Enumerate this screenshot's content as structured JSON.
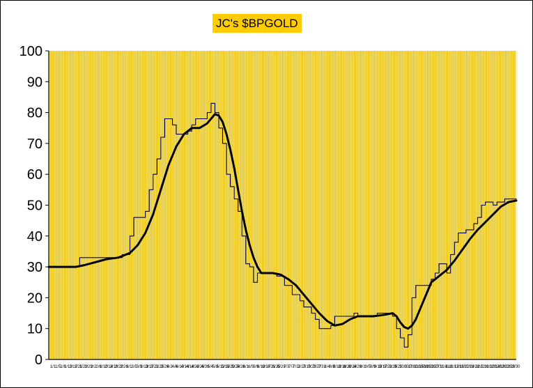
{
  "chart_data": {
    "type": "line",
    "title": "JC's $BPGOLD",
    "xlabel": "",
    "ylabel": "",
    "ylim": [
      0,
      100
    ],
    "yticks": [
      0,
      10,
      20,
      30,
      40,
      50,
      60,
      70,
      80,
      90,
      100
    ],
    "grid": "vertical",
    "legend": "none",
    "colors": {
      "plot_background": "#f7e26b",
      "gridline": "#e0b800",
      "title_background": "#ffcc00",
      "line": "#000040",
      "moving_average": "#000000"
    },
    "x_tick_labels": [
      "1/1",
      "1/5",
      "1/9",
      "1/13",
      "1/17",
      "1/21",
      "1/23",
      "1/29",
      "2/2",
      "2/6",
      "2/10",
      "2/14",
      "2/18",
      "2/22",
      "2/26",
      "3/1",
      "3/5",
      "3/9",
      "3/13",
      "3/17",
      "3/21",
      "3/25",
      "3/29",
      "4/2",
      "4/6",
      "4/10",
      "4/14",
      "4/18",
      "4/22",
      "4/26",
      "4/30",
      "5/4",
      "5/8",
      "5/12",
      "5/16",
      "5/20",
      "5/24",
      "5/28",
      "6/1",
      "6/5",
      "6/9",
      "6/13",
      "6/17",
      "6/21",
      "6/25",
      "6/29",
      "7/3",
      "7/7",
      "7/11",
      "7/15",
      "7/19",
      "7/23",
      "7/27",
      "7/31",
      "8/4",
      "8/8",
      "8/12",
      "8/16",
      "8/20",
      "8/24",
      "8/28",
      "9/1",
      "9/5",
      "9/9",
      "9/13",
      "9/17",
      "9/21",
      "9/25",
      "9/29",
      "10/3",
      "10/7",
      "10/11",
      "10/15",
      "10/19",
      "10/23",
      "10/27",
      "10/31",
      "11/4",
      "11/8",
      "11/12",
      "11/16",
      "11/20",
      "11/24",
      "11/28",
      "12/2",
      "12/6",
      "12/10",
      "12/14",
      "12/18",
      "12/22",
      "12/26",
      "12/30"
    ],
    "series": [
      {
        "style": "thin",
        "values": [
          [
            0,
            30
          ],
          [
            8,
            30
          ],
          [
            8,
            33
          ],
          [
            19,
            33
          ],
          [
            19,
            34
          ],
          [
            21,
            34
          ],
          [
            21,
            40
          ],
          [
            22,
            40
          ],
          [
            22,
            46
          ],
          [
            25,
            46
          ],
          [
            25,
            48
          ],
          [
            26,
            48
          ],
          [
            26,
            55
          ],
          [
            27,
            55
          ],
          [
            27,
            60
          ],
          [
            28,
            60
          ],
          [
            28,
            65
          ],
          [
            29,
            65
          ],
          [
            29,
            72
          ],
          [
            30,
            72
          ],
          [
            30,
            78
          ],
          [
            32,
            78
          ],
          [
            32,
            76
          ],
          [
            33,
            76
          ],
          [
            33,
            73
          ],
          [
            36,
            73
          ],
          [
            36,
            74
          ],
          [
            37,
            74
          ],
          [
            37,
            76
          ],
          [
            38,
            76
          ],
          [
            38,
            78
          ],
          [
            41,
            78
          ],
          [
            41,
            80
          ],
          [
            42,
            80
          ],
          [
            42,
            83
          ],
          [
            43,
            83
          ],
          [
            43,
            80
          ],
          [
            44,
            80
          ],
          [
            44,
            75
          ],
          [
            45,
            75
          ],
          [
            45,
            70
          ],
          [
            46,
            70
          ],
          [
            46,
            60
          ],
          [
            47,
            60
          ],
          [
            47,
            56
          ],
          [
            48,
            56
          ],
          [
            48,
            52
          ],
          [
            49,
            52
          ],
          [
            49,
            48
          ],
          [
            50,
            48
          ],
          [
            50,
            40
          ],
          [
            51,
            40
          ],
          [
            51,
            31
          ],
          [
            52,
            31
          ],
          [
            52,
            30
          ],
          [
            53,
            30
          ],
          [
            53,
            25
          ],
          [
            54,
            25
          ],
          [
            54,
            28
          ],
          [
            59,
            28
          ],
          [
            59,
            27
          ],
          [
            61,
            27
          ],
          [
            61,
            24
          ],
          [
            63,
            24
          ],
          [
            63,
            21
          ],
          [
            65,
            21
          ],
          [
            65,
            19
          ],
          [
            66,
            19
          ],
          [
            66,
            17
          ],
          [
            68,
            17
          ],
          [
            68,
            15
          ],
          [
            69,
            15
          ],
          [
            69,
            13
          ],
          [
            70,
            13
          ],
          [
            70,
            10
          ],
          [
            73,
            10
          ],
          [
            73,
            11
          ],
          [
            74,
            11
          ],
          [
            74,
            14
          ],
          [
            79,
            14
          ],
          [
            79,
            15
          ],
          [
            80,
            15
          ],
          [
            80,
            14
          ],
          [
            82,
            14
          ],
          [
            82,
            14
          ],
          [
            85,
            14
          ],
          [
            85,
            15
          ],
          [
            89,
            15
          ],
          [
            89,
            14
          ],
          [
            90,
            14
          ],
          [
            90,
            10
          ],
          [
            91,
            10
          ],
          [
            91,
            7
          ],
          [
            92,
            7
          ],
          [
            92,
            4
          ],
          [
            93,
            4
          ],
          [
            93,
            8
          ],
          [
            94,
            8
          ],
          [
            94,
            20
          ],
          [
            95,
            20
          ],
          [
            95,
            24
          ],
          [
            99,
            24
          ],
          [
            99,
            26
          ],
          [
            100,
            26
          ],
          [
            100,
            28
          ],
          [
            101,
            28
          ],
          [
            101,
            31
          ],
          [
            103,
            31
          ],
          [
            103,
            28
          ],
          [
            104,
            28
          ],
          [
            104,
            34
          ],
          [
            105,
            34
          ],
          [
            105,
            38
          ],
          [
            106,
            38
          ],
          [
            106,
            41
          ],
          [
            108,
            41
          ],
          [
            108,
            42
          ],
          [
            110,
            42
          ],
          [
            110,
            44
          ],
          [
            111,
            44
          ],
          [
            111,
            46
          ],
          [
            112,
            46
          ],
          [
            112,
            50
          ],
          [
            113,
            50
          ],
          [
            113,
            51
          ],
          [
            115,
            51
          ],
          [
            115,
            50
          ],
          [
            116,
            50
          ],
          [
            116,
            51
          ],
          [
            118,
            51
          ],
          [
            118,
            52
          ],
          [
            121,
            52
          ]
        ]
      },
      {
        "style": "moving-average",
        "values": [
          [
            0,
            30
          ],
          [
            5,
            30
          ],
          [
            7,
            30
          ],
          [
            9,
            30.5
          ],
          [
            12,
            31.5
          ],
          [
            15,
            32.5
          ],
          [
            18,
            33
          ],
          [
            21,
            34.5
          ],
          [
            23,
            37
          ],
          [
            25,
            41
          ],
          [
            27,
            47
          ],
          [
            29,
            55
          ],
          [
            31,
            63
          ],
          [
            33,
            69
          ],
          [
            35,
            73
          ],
          [
            37,
            75
          ],
          [
            39,
            75
          ],
          [
            41,
            76.5
          ],
          [
            42,
            78
          ],
          [
            43,
            79.5
          ],
          [
            44,
            79
          ],
          [
            45,
            77
          ],
          [
            46,
            73
          ],
          [
            47,
            68
          ],
          [
            48,
            62
          ],
          [
            49,
            55
          ],
          [
            50,
            48
          ],
          [
            51,
            42
          ],
          [
            52,
            37
          ],
          [
            53,
            33
          ],
          [
            54,
            30
          ],
          [
            55,
            28
          ],
          [
            58,
            28
          ],
          [
            60,
            27.5
          ],
          [
            62,
            26
          ],
          [
            64,
            24
          ],
          [
            66,
            21
          ],
          [
            68,
            18
          ],
          [
            70,
            15
          ],
          [
            72,
            12.5
          ],
          [
            74,
            11
          ],
          [
            76,
            11.5
          ],
          [
            78,
            13
          ],
          [
            80,
            14
          ],
          [
            84,
            14
          ],
          [
            87,
            14.5
          ],
          [
            89,
            15
          ],
          [
            90,
            14
          ],
          [
            91,
            12
          ],
          [
            92,
            10.5
          ],
          [
            93,
            10
          ],
          [
            94,
            11
          ],
          [
            95,
            13
          ],
          [
            96,
            16
          ],
          [
            97,
            19
          ],
          [
            98,
            22
          ],
          [
            99,
            25
          ],
          [
            101,
            27
          ],
          [
            103,
            29
          ],
          [
            105,
            32
          ],
          [
            107,
            35.5
          ],
          [
            109,
            39
          ],
          [
            111,
            42
          ],
          [
            113,
            44.5
          ],
          [
            115,
            47
          ],
          [
            117,
            49.5
          ],
          [
            119,
            51
          ],
          [
            121,
            51.5
          ]
        ]
      }
    ]
  }
}
